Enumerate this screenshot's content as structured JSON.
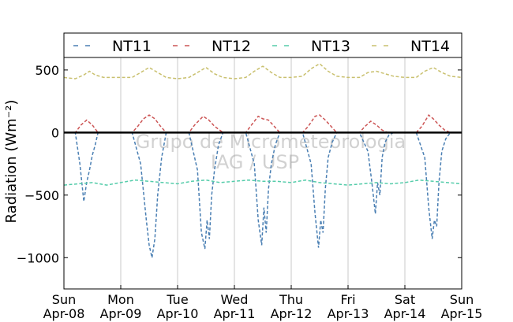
{
  "chart_data": {
    "type": "line",
    "title": "",
    "xlabel": "",
    "ylabel": "Radiation (Wm⁻²)",
    "ylim": [
      -1250,
      600
    ],
    "xlim": [
      0,
      7
    ],
    "yticks": [
      -1000,
      -500,
      0,
      500
    ],
    "ytick_labels": [
      "−1000",
      "−500",
      "0",
      "500"
    ],
    "x_ticks": [
      0,
      1,
      2,
      3,
      4,
      5,
      6,
      7
    ],
    "x_tick_labels": [
      [
        "Sun",
        "Apr-08"
      ],
      [
        "Mon",
        "Apr-09"
      ],
      [
        "Tue",
        "Apr-10"
      ],
      [
        "Wed",
        "Apr-11"
      ],
      [
        "Thu",
        "Apr-12"
      ],
      [
        "Fri",
        "Apr-13"
      ],
      [
        "Sat",
        "Apr-14"
      ],
      [
        "Sun",
        "Apr-15"
      ]
    ],
    "grid": "vertical",
    "zero_line": true,
    "legend_position": "top",
    "watermark": [
      "Grupo de Micrometeorologia",
      "IAG / USP"
    ],
    "series": [
      {
        "name": "NT11",
        "color": "#4a7fb3",
        "x": [
          0,
          0.2,
          0.28,
          0.35,
          0.4,
          0.45,
          0.5,
          0.55,
          0.6,
          0.7,
          0.8,
          1.0,
          1.2,
          1.35,
          1.45,
          1.5,
          1.55,
          1.6,
          1.65,
          1.72,
          1.8,
          1.9,
          2.0,
          2.2,
          2.35,
          2.42,
          2.48,
          2.52,
          2.56,
          2.6,
          2.65,
          2.72,
          2.8,
          3.0,
          3.2,
          3.35,
          3.42,
          3.48,
          3.52,
          3.56,
          3.6,
          3.65,
          3.72,
          3.8,
          4.0,
          4.2,
          4.35,
          4.42,
          4.48,
          4.52,
          4.56,
          4.6,
          4.65,
          4.72,
          4.8,
          5.0,
          5.2,
          5.35,
          5.42,
          5.48,
          5.52,
          5.56,
          5.6,
          5.65,
          5.72,
          5.8,
          6.0,
          6.2,
          6.35,
          6.42,
          6.48,
          6.52,
          6.56,
          6.6,
          6.65,
          6.72,
          6.8,
          7.0
        ],
        "y": [
          0,
          0,
          -250,
          -550,
          -400,
          -300,
          -180,
          -100,
          0,
          0,
          0,
          0,
          0,
          -250,
          -700,
          -900,
          -1000,
          -850,
          -500,
          -200,
          0,
          0,
          0,
          0,
          -300,
          -800,
          -930,
          -700,
          -850,
          -500,
          -300,
          -100,
          0,
          0,
          0,
          -250,
          -700,
          -900,
          -600,
          -800,
          -450,
          -250,
          -100,
          0,
          0,
          0,
          -250,
          -650,
          -920,
          -700,
          -800,
          -450,
          -200,
          -80,
          0,
          0,
          0,
          -150,
          -400,
          -650,
          -400,
          -500,
          -200,
          -80,
          -20,
          0,
          0,
          0,
          -200,
          -600,
          -850,
          -700,
          -750,
          -400,
          -150,
          -50,
          0,
          0
        ]
      },
      {
        "name": "NT12",
        "color": "#cc5555",
        "x": [
          0,
          0.2,
          0.3,
          0.4,
          0.5,
          0.6,
          1.2,
          1.3,
          1.4,
          1.5,
          1.6,
          1.7,
          1.8,
          2.2,
          2.3,
          2.45,
          2.55,
          2.65,
          2.8,
          3.2,
          3.3,
          3.42,
          3.5,
          3.6,
          3.7,
          3.8,
          4.2,
          4.3,
          4.42,
          4.5,
          4.6,
          4.7,
          4.8,
          5.2,
          5.3,
          5.4,
          5.5,
          5.6,
          5.7,
          6.2,
          6.3,
          6.42,
          6.5,
          6.6,
          6.7,
          6.8,
          7.0
        ],
        "y": [
          0,
          0,
          60,
          100,
          60,
          0,
          0,
          50,
          110,
          140,
          110,
          50,
          0,
          0,
          60,
          130,
          100,
          50,
          0,
          0,
          60,
          130,
          110,
          100,
          50,
          0,
          0,
          50,
          130,
          140,
          100,
          50,
          0,
          0,
          50,
          90,
          60,
          20,
          0,
          0,
          50,
          140,
          110,
          60,
          20,
          0,
          0
        ]
      },
      {
        "name": "NT13",
        "color": "#55ccaa",
        "x": [
          0,
          0.25,
          0.5,
          0.75,
          1.0,
          1.25,
          1.5,
          1.75,
          2.0,
          2.25,
          2.5,
          2.75,
          3.0,
          3.25,
          3.5,
          3.75,
          4.0,
          4.25,
          4.5,
          4.75,
          5.0,
          5.25,
          5.5,
          5.75,
          6.0,
          6.25,
          6.5,
          6.75,
          7.0
        ],
        "y": [
          -420,
          -410,
          -400,
          -420,
          -400,
          -380,
          -390,
          -400,
          -410,
          -390,
          -380,
          -400,
          -390,
          -380,
          -390,
          -390,
          -400,
          -380,
          -400,
          -410,
          -420,
          -410,
          -400,
          -410,
          -400,
          -380,
          -390,
          -400,
          -410
        ]
      },
      {
        "name": "NT14",
        "color": "#c9c06e",
        "x": [
          0,
          0.2,
          0.35,
          0.45,
          0.55,
          0.7,
          1.0,
          1.2,
          1.35,
          1.5,
          1.65,
          1.8,
          2.0,
          2.2,
          2.35,
          2.5,
          2.65,
          2.8,
          3.0,
          3.2,
          3.35,
          3.5,
          3.65,
          3.8,
          4.0,
          4.2,
          4.35,
          4.5,
          4.65,
          4.8,
          5.0,
          5.2,
          5.35,
          5.5,
          5.65,
          5.8,
          6.0,
          6.2,
          6.35,
          6.5,
          6.65,
          6.8,
          7.0
        ],
        "y": [
          440,
          430,
          460,
          490,
          460,
          440,
          440,
          440,
          480,
          520,
          480,
          440,
          430,
          440,
          480,
          520,
          470,
          440,
          430,
          440,
          490,
          530,
          480,
          440,
          440,
          450,
          510,
          550,
          490,
          450,
          440,
          440,
          480,
          490,
          470,
          450,
          440,
          440,
          490,
          520,
          480,
          450,
          440
        ]
      }
    ]
  }
}
